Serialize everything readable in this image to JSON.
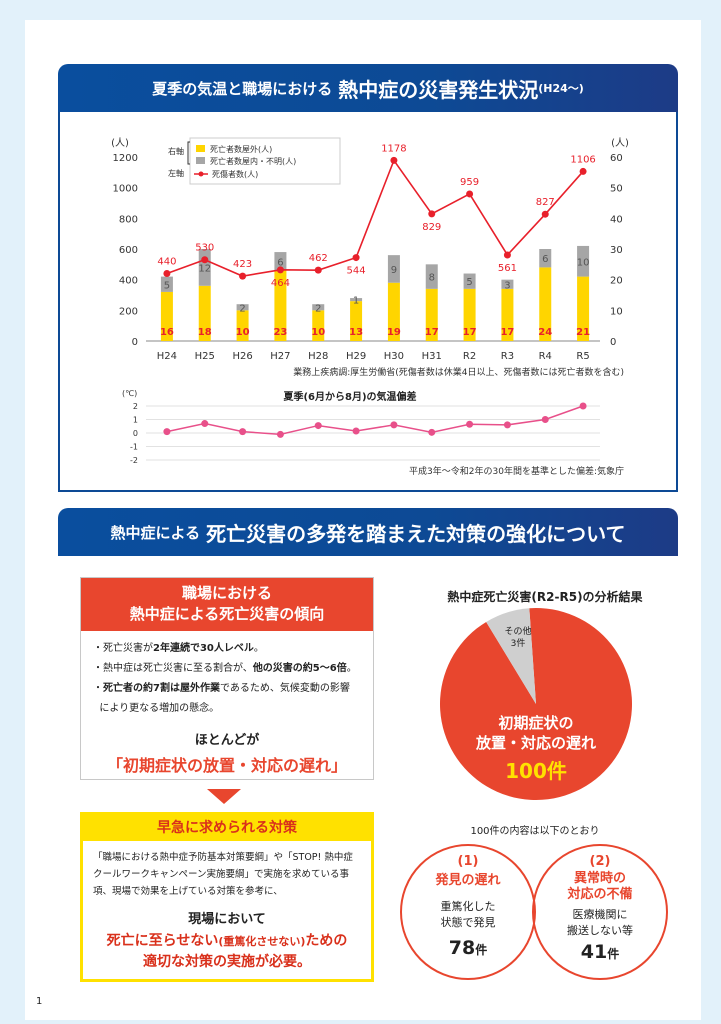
{
  "section1": {
    "title_small": "夏季の気温と職場における",
    "title_big": "熱中症の災害発生状況",
    "title_tail": "(H24〜)"
  },
  "chart_data": [
    {
      "type": "bar",
      "categories": [
        "H24",
        "H25",
        "H26",
        "H27",
        "H28",
        "H29",
        "H30",
        "H31",
        "R2",
        "R3",
        "R4",
        "R5"
      ],
      "series": [
        {
          "name": "死亡者数屋外(人)",
          "axis": "right",
          "values": [
            16,
            18,
            10,
            23,
            10,
            13,
            19,
            17,
            17,
            17,
            24,
            21
          ],
          "color": "#ffd500"
        },
        {
          "name": "死亡者数屋内・不明(人)",
          "axis": "right",
          "values": [
            5,
            12,
            2,
            6,
            2,
            1,
            9,
            8,
            5,
            3,
            6,
            10
          ],
          "color": "#a6a6a6"
        },
        {
          "name": "死傷者数(人)",
          "axis": "left",
          "type": "line",
          "values": [
            440,
            530,
            423,
            464,
            462,
            544,
            1178,
            829,
            959,
            561,
            827,
            1106
          ],
          "color": "#e8202b"
        }
      ],
      "left_axis": {
        "unit": "(人)",
        "ylim": [
          0,
          1200
        ],
        "ticks": [
          0,
          200,
          400,
          600,
          800,
          1000,
          1200
        ]
      },
      "right_axis": {
        "unit": "(人)",
        "ylim": [
          0,
          60
        ],
        "ticks": [
          0,
          10,
          20,
          30,
          40,
          50,
          60
        ]
      },
      "legend": {
        "right_label": "右軸",
        "left_label": "左軸",
        "position": "top-left"
      },
      "source": "業務上疾病調:厚生労働省(死傷者数は休業4日以上、死傷者数には死亡者数を含む)"
    },
    {
      "type": "line",
      "title": "夏季(6月から8月)の気温偏差",
      "unit": "(℃)",
      "categories": [
        "H24",
        "H25",
        "H26",
        "H27",
        "H28",
        "H29",
        "H30",
        "H31",
        "R2",
        "R3",
        "R4",
        "R5"
      ],
      "values": [
        0.1,
        0.7,
        0.1,
        -0.1,
        0.55,
        0.15,
        0.6,
        0.05,
        0.65,
        0.6,
        1.0,
        2.0
      ],
      "ylim": [
        -2,
        2
      ],
      "ticks": [
        "2",
        "1",
        "0",
        "-1",
        "-2"
      ],
      "color": "#e8508a",
      "source": "平成3年〜令和2年の30年間を基準とした偏差:気象庁"
    },
    {
      "type": "pie",
      "title": "熱中症死亡災害(R2-R5)の分析結果",
      "slices": [
        {
          "label": "初期症状の放置・対応の遅れ",
          "value": 100,
          "display": "100件",
          "color": "#e8462e"
        },
        {
          "label": "その他",
          "value": 3,
          "display": "3件",
          "color": "#cfcfcf"
        }
      ]
    }
  ],
  "section2": {
    "title_small": "熱中症による",
    "title_big": "死亡災害の多発を踏まえた対策の強化について"
  },
  "trend_box": {
    "header_line1": "職場における",
    "header_line2": "熱中症による死亡災害の傾向",
    "bullets": [
      {
        "pre": "・死亡災害が",
        "bold": "2年連続で30人レベル",
        "post": "。"
      },
      {
        "pre": "・熱中症は死亡災害に至る割合が、",
        "bold": "他の災害の約5〜6倍",
        "post": "。"
      },
      {
        "pre": "・",
        "bold": "死亡者の約7割は屋外作業",
        "post": "であるため、気候変動の影響"
      },
      {
        "pre": "  により更なる増加の懸念。",
        "bold": "",
        "post": ""
      }
    ],
    "lead": "ほとんどが",
    "highlight": "「初期症状の放置・対応の遅れ」"
  },
  "measures_box": {
    "header": "早急に求められる対策",
    "body": "「職場における熱中症予防基本対策要綱」や「STOP! 熱中症クールワークキャンペーン実施要綱」で実施を求めている事項、現場で効果を上げている対策を参考に、",
    "lead": "現場において",
    "highlight_a": "死亡に至らせない",
    "highlight_small": "(重篤化させない)",
    "highlight_b": "ための",
    "highlight_c": "適切な対策の実施が必要。"
  },
  "pie_labels": {
    "main_line1": "初期症状の",
    "main_line2": "放置・対応の遅れ",
    "main_count": "100件",
    "other_line1": "その他",
    "other_line2": "3件"
  },
  "breakdown": {
    "note": "100件の内容は以下のとおり",
    "items": [
      {
        "num": "(1)",
        "head1": "発見の遅れ",
        "head2": "",
        "desc1": "重篤化した",
        "desc2": "状態で発見",
        "count": "78",
        "unit": "件"
      },
      {
        "num": "(2)",
        "head1": "異常時の",
        "head2": "対応の不備",
        "desc1": "医療機関に",
        "desc2": "搬送しない等",
        "count": "41",
        "unit": "件"
      }
    ]
  },
  "page_number": "1"
}
